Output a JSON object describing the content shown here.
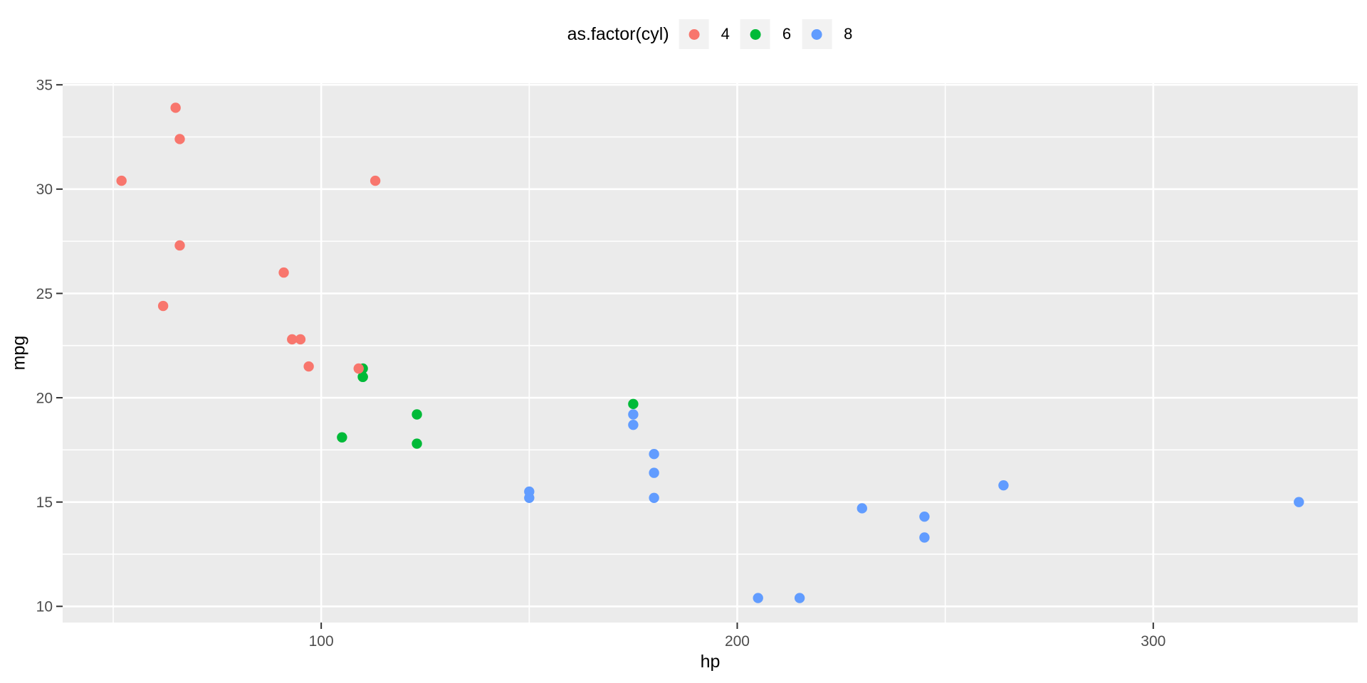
{
  "figure": {
    "background": "#FFFFFF"
  },
  "legend": {
    "title": "as.factor(cyl)",
    "key_fill": "#F2F2F2",
    "position": "top",
    "items": [
      {
        "label": "4",
        "color": "#F8766D"
      },
      {
        "label": "6",
        "color": "#00BA38"
      },
      {
        "label": "8",
        "color": "#619CFF"
      }
    ]
  },
  "axes": {
    "x": {
      "title": "hp",
      "ticks": [
        100,
        200,
        300
      ],
      "minor": [
        50,
        150,
        250
      ]
    },
    "y": {
      "title": "mpg",
      "ticks": [
        10,
        15,
        20,
        25,
        30,
        35
      ],
      "minor": [
        12.5,
        17.5,
        22.5,
        27.5,
        32.5
      ]
    }
  },
  "panel": {
    "fill": "#EBEBEB",
    "grid_color": "#FFFFFF",
    "tick_mark_color": "#333333",
    "tick_label_color": "#4D4D4D"
  },
  "chart_data": {
    "type": "scatter",
    "title": "",
    "xlabel": "hp",
    "ylabel": "mpg",
    "xlim": [
      37.85,
      349.15
    ],
    "ylim": [
      9.225,
      35.075
    ],
    "x_ticks": [
      100,
      200,
      300
    ],
    "y_ticks": [
      10,
      15,
      20,
      25,
      30,
      35
    ],
    "grid": true,
    "legend_title": "as.factor(cyl)",
    "legend_position": "top",
    "point_radius_px": 7.2,
    "series": [
      {
        "name": "4",
        "color": "#F8766D",
        "z": 2,
        "points": [
          [
            93,
            22.8
          ],
          [
            62,
            24.4
          ],
          [
            95,
            22.8
          ],
          [
            66,
            32.4
          ],
          [
            52,
            30.4
          ],
          [
            65,
            33.9
          ],
          [
            97,
            21.5
          ],
          [
            66,
            27.3
          ],
          [
            91,
            26.0
          ],
          [
            113,
            30.4
          ],
          [
            109,
            21.4
          ]
        ]
      },
      {
        "name": "6",
        "color": "#00BA38",
        "z": 1,
        "points": [
          [
            110,
            21.0
          ],
          [
            110,
            21.0
          ],
          [
            110,
            21.4
          ],
          [
            105,
            18.1
          ],
          [
            123,
            19.2
          ],
          [
            123,
            17.8
          ],
          [
            175,
            19.7
          ]
        ]
      },
      {
        "name": "8",
        "color": "#619CFF",
        "z": 3,
        "points": [
          [
            175,
            18.7
          ],
          [
            245,
            14.3
          ],
          [
            180,
            16.4
          ],
          [
            180,
            17.3
          ],
          [
            180,
            15.2
          ],
          [
            205,
            10.4
          ],
          [
            215,
            10.4
          ],
          [
            230,
            14.7
          ],
          [
            150,
            15.5
          ],
          [
            150,
            15.2
          ],
          [
            245,
            13.3
          ],
          [
            175,
            19.2
          ],
          [
            264,
            15.8
          ],
          [
            335,
            15.0
          ]
        ]
      }
    ]
  }
}
